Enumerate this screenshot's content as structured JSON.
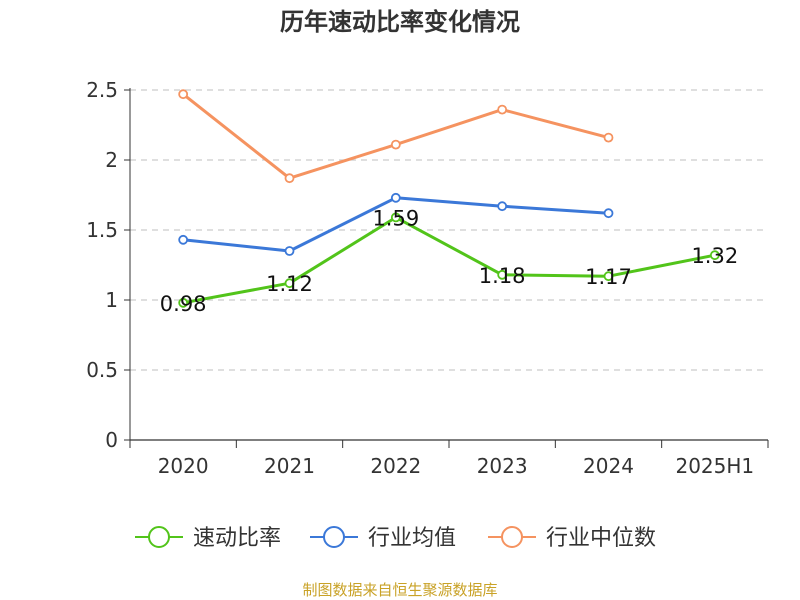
{
  "chart_data": {
    "type": "line",
    "title": "历年速动比率变化情况",
    "categories": [
      "2020",
      "2021",
      "2022",
      "2023",
      "2024",
      "2025H1"
    ],
    "ylim": [
      0,
      2.5
    ],
    "yticks": [
      "0",
      "0.5",
      "1",
      "1.5",
      "2",
      "2.5"
    ],
    "grid": true,
    "legend_position": "bottom",
    "series": [
      {
        "name": "速动比率",
        "color": "#52c41a",
        "values": [
          0.98,
          1.12,
          1.59,
          1.18,
          1.17,
          1.32
        ],
        "labels": [
          "0.98",
          "1.12",
          "1.59",
          "1.18",
          "1.17",
          "1.32"
        ]
      },
      {
        "name": "行业均值",
        "color": "#3b78d8",
        "values": [
          1.43,
          1.35,
          1.73,
          1.67,
          1.62,
          null
        ]
      },
      {
        "name": "行业中位数",
        "color": "#f59360",
        "values": [
          2.47,
          1.87,
          2.11,
          2.36,
          2.16,
          null
        ]
      }
    ],
    "source": "制图数据来自恒生聚源数据库"
  }
}
